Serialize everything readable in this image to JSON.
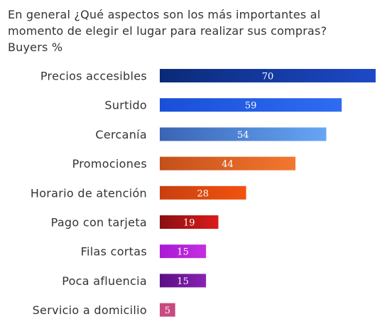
{
  "chart_data": {
    "type": "bar",
    "orientation": "horizontal",
    "title_lines": [
      "En general ¿Qué aspectos son los más importantes al",
      "momento de elegir el lugar para realizar sus compras?",
      "Buyers %"
    ],
    "categories": [
      "Precios accesibles",
      "Surtido",
      "Cercanía",
      "Promociones",
      "Horario de atención",
      "Pago con tarjeta",
      "Filas cortas",
      "Poca afluencia",
      "Servicio a domicilio"
    ],
    "values": [
      70,
      59,
      54,
      44,
      28,
      19,
      15,
      15,
      5
    ],
    "value_labels": [
      "70",
      "59",
      "54",
      "44",
      "28",
      "19",
      "15",
      "15",
      "5"
    ],
    "xlim": [
      0,
      70
    ],
    "grid": false,
    "legend": "none",
    "bar_colors": [
      [
        "#0a2a78",
        "#1e49c8"
      ],
      [
        "#1a4fd8",
        "#2f6cf2"
      ],
      [
        "#3a64b4",
        "#66a6f5"
      ],
      [
        "#c4501a",
        "#f4772e"
      ],
      [
        "#c8400e",
        "#f2520e"
      ],
      [
        "#8a0f12",
        "#dc1a1a"
      ],
      [
        "#a81ad4",
        "#c42ee0"
      ],
      [
        "#5a0f82",
        "#8a22b4"
      ],
      [
        "#c84a80",
        "#c84a80"
      ]
    ]
  }
}
